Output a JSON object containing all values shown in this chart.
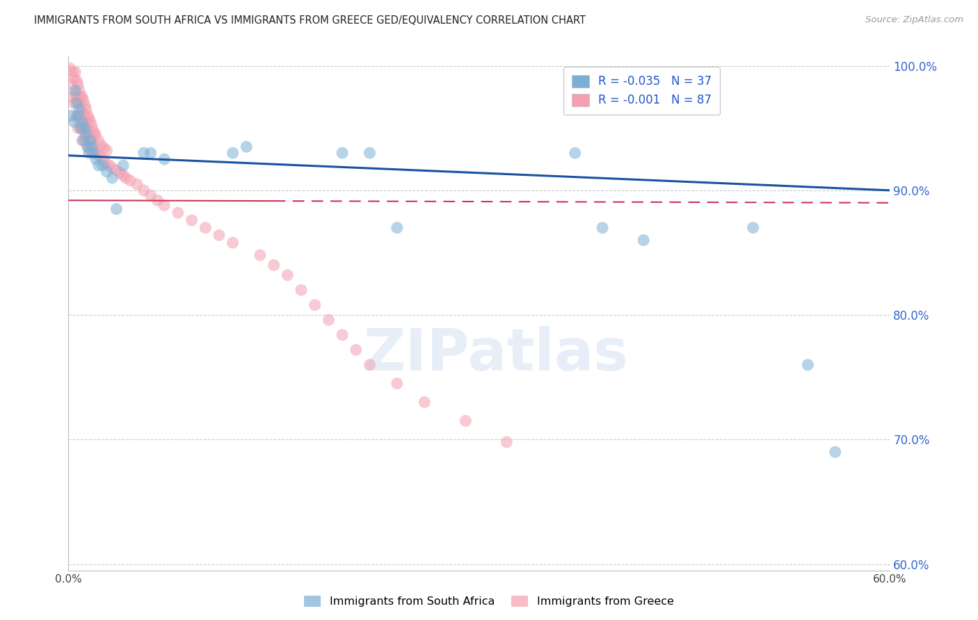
{
  "title": "IMMIGRANTS FROM SOUTH AFRICA VS IMMIGRANTS FROM GREECE GED/EQUIVALENCY CORRELATION CHART",
  "source": "Source: ZipAtlas.com",
  "ylabel": "GED/Equivalency",
  "x_min": 0.0,
  "x_max": 0.6,
  "y_min": 0.595,
  "y_max": 1.008,
  "x_ticks": [
    0.0,
    0.1,
    0.2,
    0.3,
    0.4,
    0.5,
    0.6
  ],
  "x_tick_labels": [
    "0.0%",
    "",
    "",
    "",
    "",
    "",
    "60.0%"
  ],
  "y_ticks": [
    0.6,
    0.7,
    0.8,
    0.9,
    1.0
  ],
  "y_tick_labels": [
    "60.0%",
    "70.0%",
    "80.0%",
    "90.0%",
    "100.0%"
  ],
  "blue_R": -0.035,
  "blue_N": 37,
  "pink_R": -0.001,
  "pink_N": 87,
  "blue_color": "#7BAFD4",
  "pink_color": "#F4A0B0",
  "blue_line_color": "#1A52A0",
  "pink_line_color": "#CC3355",
  "watermark": "ZIPatlas",
  "legend_label_blue": "Immigrants from South Africa",
  "legend_label_pink": "Immigrants from Greece",
  "blue_scatter_x": [
    0.002,
    0.004,
    0.005,
    0.006,
    0.007,
    0.008,
    0.009,
    0.01,
    0.011,
    0.012,
    0.013,
    0.014,
    0.015,
    0.016,
    0.017,
    0.018,
    0.02,
    0.022,
    0.025,
    0.028,
    0.032,
    0.035,
    0.04,
    0.055,
    0.06,
    0.07,
    0.12,
    0.13,
    0.2,
    0.22,
    0.24,
    0.37,
    0.39,
    0.42,
    0.5,
    0.54,
    0.56
  ],
  "blue_scatter_y": [
    0.96,
    0.955,
    0.98,
    0.97,
    0.96,
    0.965,
    0.95,
    0.955,
    0.94,
    0.95,
    0.945,
    0.935,
    0.93,
    0.94,
    0.935,
    0.93,
    0.925,
    0.92,
    0.92,
    0.915,
    0.91,
    0.885,
    0.92,
    0.93,
    0.93,
    0.925,
    0.93,
    0.935,
    0.93,
    0.93,
    0.87,
    0.93,
    0.87,
    0.86,
    0.87,
    0.76,
    0.69
  ],
  "pink_scatter_x": [
    0.001,
    0.002,
    0.003,
    0.003,
    0.004,
    0.004,
    0.005,
    0.005,
    0.006,
    0.006,
    0.006,
    0.007,
    0.007,
    0.007,
    0.007,
    0.008,
    0.008,
    0.008,
    0.009,
    0.009,
    0.009,
    0.01,
    0.01,
    0.01,
    0.01,
    0.011,
    0.011,
    0.011,
    0.012,
    0.012,
    0.012,
    0.013,
    0.013,
    0.013,
    0.014,
    0.014,
    0.014,
    0.015,
    0.015,
    0.015,
    0.016,
    0.016,
    0.017,
    0.017,
    0.018,
    0.018,
    0.019,
    0.019,
    0.02,
    0.02,
    0.022,
    0.022,
    0.024,
    0.025,
    0.026,
    0.027,
    0.028,
    0.03,
    0.032,
    0.035,
    0.038,
    0.04,
    0.042,
    0.045,
    0.05,
    0.055,
    0.06,
    0.065,
    0.07,
    0.08,
    0.09,
    0.1,
    0.11,
    0.12,
    0.14,
    0.15,
    0.16,
    0.17,
    0.18,
    0.19,
    0.2,
    0.21,
    0.22,
    0.24,
    0.26,
    0.29,
    0.32
  ],
  "pink_scatter_y": [
    0.998,
    0.985,
    0.995,
    0.975,
    0.99,
    0.97,
    0.995,
    0.978,
    0.988,
    0.975,
    0.96,
    0.985,
    0.97,
    0.96,
    0.95,
    0.98,
    0.97,
    0.955,
    0.975,
    0.96,
    0.95,
    0.975,
    0.963,
    0.95,
    0.94,
    0.972,
    0.96,
    0.948,
    0.968,
    0.955,
    0.943,
    0.965,
    0.952,
    0.94,
    0.96,
    0.948,
    0.935,
    0.958,
    0.946,
    0.933,
    0.955,
    0.942,
    0.952,
    0.94,
    0.948,
    0.936,
    0.946,
    0.932,
    0.944,
    0.93,
    0.94,
    0.928,
    0.936,
    0.925,
    0.934,
    0.922,
    0.932,
    0.92,
    0.918,
    0.916,
    0.914,
    0.912,
    0.91,
    0.908,
    0.905,
    0.9,
    0.896,
    0.892,
    0.888,
    0.882,
    0.876,
    0.87,
    0.864,
    0.858,
    0.848,
    0.84,
    0.832,
    0.82,
    0.808,
    0.796,
    0.784,
    0.772,
    0.76,
    0.745,
    0.73,
    0.715,
    0.698
  ],
  "blue_line_x0": 0.0,
  "blue_line_x1": 0.6,
  "blue_line_y0": 0.928,
  "blue_line_y1": 0.9,
  "pink_line_x0": 0.0,
  "pink_line_x1": 0.6,
  "pink_line_y0": 0.892,
  "pink_line_y1": 0.89
}
